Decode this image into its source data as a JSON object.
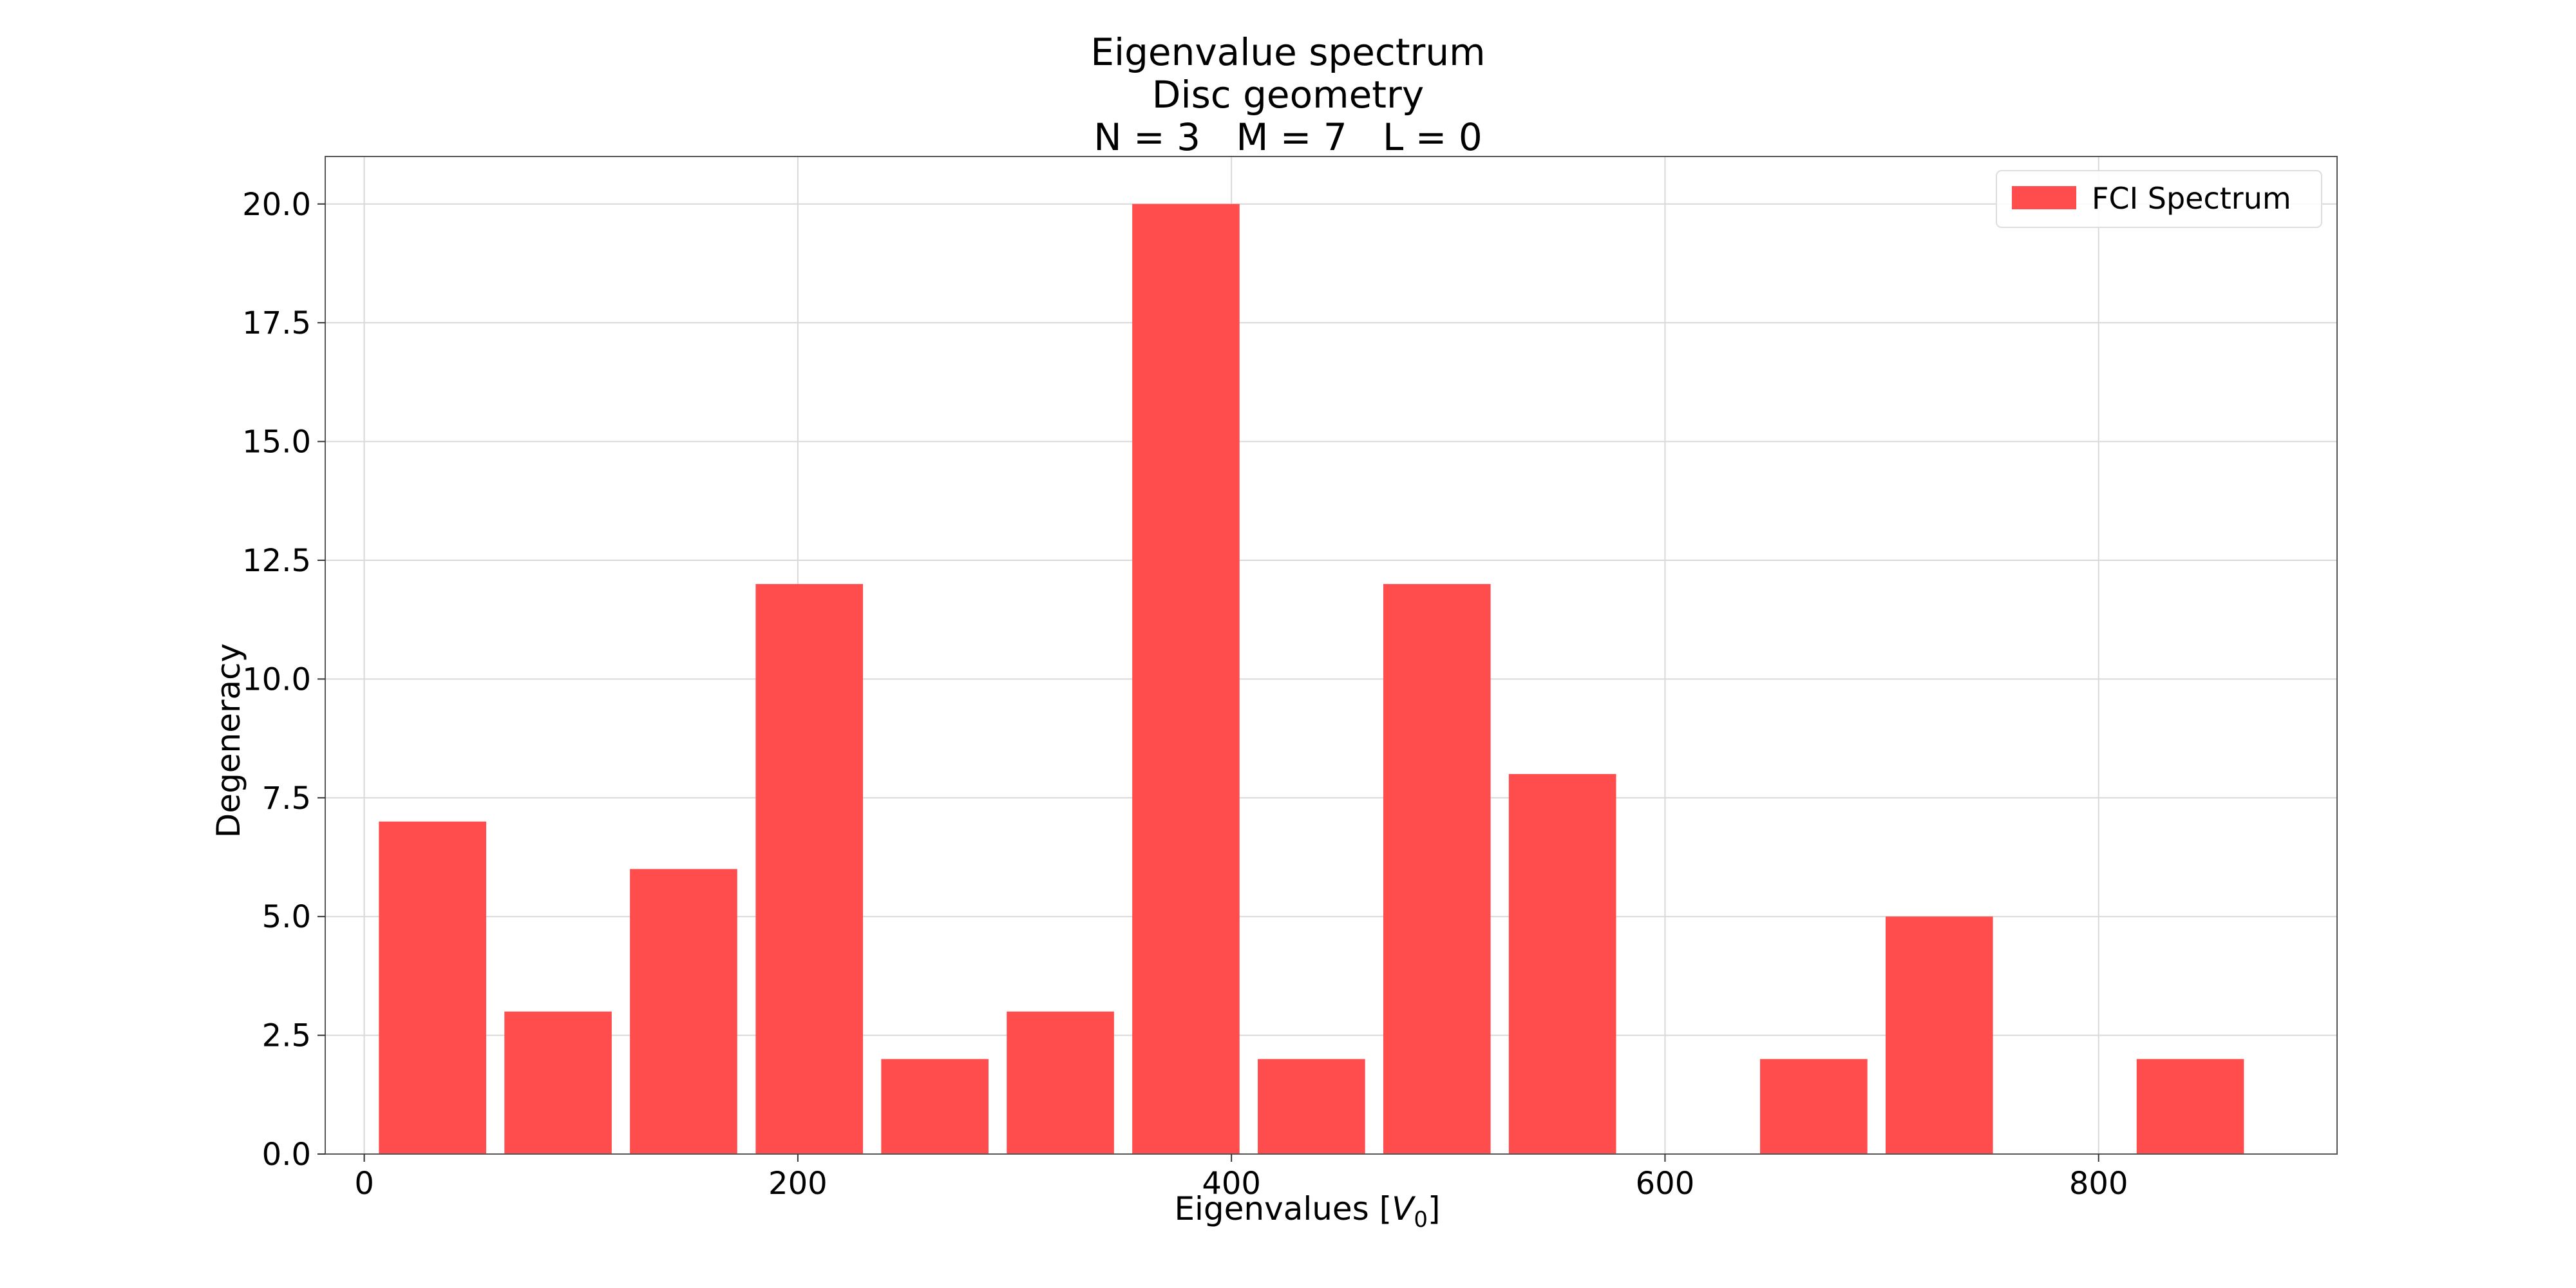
{
  "chart_data": {
    "type": "bar",
    "title": "Eigenvalue spectrum",
    "subtitle": "Disc geometry",
    "params_line": "N = 3   M = 7   L = 0",
    "xlabel_main": "Eigenvalues [",
    "xlabel_symbol": "V",
    "xlabel_sub": "0",
    "xlabel_end": "]",
    "ylabel": "Degeneracy",
    "xlim": [
      -18,
      910
    ],
    "ylim": [
      0,
      21
    ],
    "xticks": [
      0,
      200,
      400,
      600,
      800
    ],
    "yticks": [
      0.0,
      2.5,
      5.0,
      7.5,
      10.0,
      12.5,
      15.0,
      17.5,
      20.0
    ],
    "grid": true,
    "legend_position": "top-right",
    "bar_width": 49.5,
    "series": [
      {
        "name": "FCI Spectrum",
        "color": "#ff4d4d",
        "x": [
          31.5,
          89.4,
          147.3,
          205.3,
          263.2,
          321.1,
          379.0,
          436.9,
          494.8,
          552.7,
          668.6,
          726.5,
          842.3
        ],
        "values": [
          7,
          3,
          6,
          12,
          2,
          3,
          20,
          2,
          12,
          8,
          2,
          5,
          2
        ]
      }
    ]
  }
}
